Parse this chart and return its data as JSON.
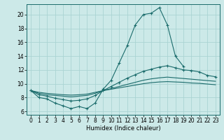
{
  "xlabel": "Humidex (Indice chaleur)",
  "x_ticks": [
    0,
    1,
    2,
    3,
    4,
    5,
    6,
    7,
    8,
    9,
    10,
    11,
    12,
    13,
    14,
    15,
    16,
    17,
    18,
    19,
    20,
    21,
    22,
    23
  ],
  "ylim": [
    5.5,
    21.5
  ],
  "xlim": [
    -0.5,
    23.5
  ],
  "yticks": [
    6,
    8,
    10,
    12,
    14,
    16,
    18,
    20
  ],
  "bg_color": "#cce9e8",
  "grid_color": "#aad4d3",
  "line_color": "#1a6b6b",
  "series": [
    {
      "x": [
        0,
        1,
        2,
        3,
        4,
        5,
        6,
        7,
        8,
        9,
        10,
        11,
        12,
        13,
        14,
        15,
        16,
        17,
        18,
        19
      ],
      "y": [
        9.0,
        8.0,
        7.8,
        7.2,
        6.8,
        6.4,
        6.7,
        6.4,
        7.2,
        9.2,
        10.5,
        13.0,
        15.5,
        18.5,
        20.0,
        20.2,
        21.0,
        18.5,
        14.0,
        12.5
      ],
      "marker": true
    },
    {
      "x": [
        0,
        1,
        2,
        3,
        4,
        5,
        6,
        7,
        8,
        9,
        10,
        11,
        12,
        13,
        14,
        15,
        16,
        17,
        18,
        19,
        20,
        21,
        22,
        23
      ],
      "y": [
        9.0,
        8.4,
        8.2,
        7.9,
        7.7,
        7.5,
        7.6,
        7.8,
        8.3,
        9.0,
        9.6,
        10.2,
        10.8,
        11.3,
        11.8,
        12.1,
        12.4,
        12.6,
        12.3,
        12.0,
        11.9,
        11.7,
        11.2,
        11.0
      ],
      "marker": true
    },
    {
      "x": [
        0,
        1,
        2,
        3,
        4,
        5,
        6,
        7,
        8,
        9,
        10,
        11,
        12,
        13,
        14,
        15,
        16,
        17,
        18,
        19,
        20,
        21,
        22,
        23
      ],
      "y": [
        9.0,
        8.6,
        8.4,
        8.3,
        8.2,
        8.1,
        8.2,
        8.3,
        8.6,
        9.0,
        9.3,
        9.6,
        9.9,
        10.2,
        10.5,
        10.7,
        10.85,
        10.95,
        10.85,
        10.75,
        10.65,
        10.55,
        10.45,
        10.35
      ],
      "marker": false
    },
    {
      "x": [
        0,
        1,
        2,
        3,
        4,
        5,
        6,
        7,
        8,
        9,
        10,
        11,
        12,
        13,
        14,
        15,
        16,
        17,
        18,
        19,
        20,
        21,
        22,
        23
      ],
      "y": [
        9.0,
        8.75,
        8.6,
        8.5,
        8.4,
        8.35,
        8.4,
        8.5,
        8.75,
        9.0,
        9.2,
        9.4,
        9.6,
        9.8,
        10.0,
        10.15,
        10.25,
        10.3,
        10.25,
        10.2,
        10.1,
        10.05,
        9.95,
        9.85
      ],
      "marker": false
    }
  ]
}
